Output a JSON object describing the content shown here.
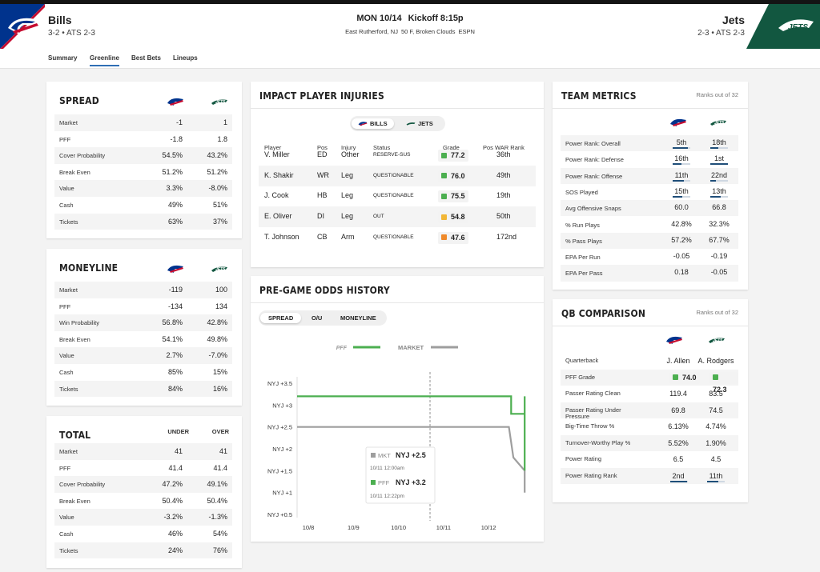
{
  "header": {
    "home_team": "Bills",
    "home_record": "3-2 • ATS 2-3",
    "away_team": "Jets",
    "away_record": "2-3 • ATS 2-3",
    "game_day": "MON 10/14",
    "kickoff": "Kickoff 8:15p",
    "location": "East Rutherford, NJ",
    "weather": "50 F, Broken Clouds",
    "network": "ESPN",
    "colors": {
      "bills_blue": "#00338d",
      "bills_red": "#c60c30",
      "jets_green": "#125740"
    }
  },
  "tabs": [
    "Summary",
    "Greenline",
    "Best Bets",
    "Lineups"
  ],
  "active_tab": "Greenline",
  "spread": {
    "title": "SPREAD",
    "rows": [
      {
        "label": "Market",
        "bills": "-1",
        "jets": "1"
      },
      {
        "label": "PFF",
        "bills": "-1.8",
        "jets": "1.8"
      },
      {
        "label": "Cover Probability",
        "bills": "54.5%",
        "jets": "43.2%"
      },
      {
        "label": "Break Even",
        "bills": "51.2%",
        "jets": "51.2%"
      },
      {
        "label": "Value",
        "bills": "3.3%",
        "jets": "-8.0%"
      },
      {
        "label": "Cash",
        "bills": "49%",
        "jets": "51%"
      },
      {
        "label": "Tickets",
        "bills": "63%",
        "jets": "37%"
      }
    ]
  },
  "moneyline": {
    "title": "MONEYLINE",
    "rows": [
      {
        "label": "Market",
        "bills": "-119",
        "jets": "100"
      },
      {
        "label": "PFF",
        "bills": "-134",
        "jets": "134"
      },
      {
        "label": "Win Probability",
        "bills": "56.8%",
        "jets": "42.8%"
      },
      {
        "label": "Break Even",
        "bills": "54.1%",
        "jets": "49.8%"
      },
      {
        "label": "Value",
        "bills": "2.7%",
        "jets": "-7.0%"
      },
      {
        "label": "Cash",
        "bills": "85%",
        "jets": "15%"
      },
      {
        "label": "Tickets",
        "bills": "84%",
        "jets": "16%"
      }
    ]
  },
  "total": {
    "title": "TOTAL",
    "col_a": "UNDER",
    "col_b": "OVER",
    "rows": [
      {
        "label": "Market",
        "a": "41",
        "b": "41"
      },
      {
        "label": "PFF",
        "a": "41.4",
        "b": "41.4"
      },
      {
        "label": "Cover Probability",
        "a": "47.2%",
        "b": "49.1%"
      },
      {
        "label": "Break Even",
        "a": "50.4%",
        "b": "50.4%"
      },
      {
        "label": "Value",
        "a": "-3.2%",
        "b": "-1.3%"
      },
      {
        "label": "Cash",
        "a": "46%",
        "b": "54%"
      },
      {
        "label": "Tickets",
        "a": "24%",
        "b": "76%"
      }
    ]
  },
  "injuries": {
    "title": "IMPACT PLAYER INJURIES",
    "toggle": [
      "BILLS",
      "JETS"
    ],
    "active": "BILLS",
    "columns": [
      "Player",
      "Pos",
      "Injury",
      "Status",
      "Grade",
      "Pos WAR Rank"
    ],
    "rows": [
      {
        "player": "V. Miller",
        "pos": "ED",
        "injury": "Other",
        "status": "RESERVE-SUS",
        "grade": "77.2",
        "grade_color": "#4caf50",
        "rank": "36th"
      },
      {
        "player": "K. Shakir",
        "pos": "WR",
        "injury": "Leg",
        "status": "QUESTIONABLE",
        "grade": "76.0",
        "grade_color": "#4caf50",
        "rank": "49th"
      },
      {
        "player": "J. Cook",
        "pos": "HB",
        "injury": "Leg",
        "status": "QUESTIONABLE",
        "grade": "75.5",
        "grade_color": "#4caf50",
        "rank": "19th"
      },
      {
        "player": "E. Oliver",
        "pos": "DI",
        "injury": "Leg",
        "status": "OUT",
        "grade": "54.8",
        "grade_color": "#f2b636",
        "rank": "50th"
      },
      {
        "player": "T. Johnson",
        "pos": "CB",
        "injury": "Arm",
        "status": "QUESTIONABLE",
        "grade": "47.6",
        "grade_color": "#ef8a2a",
        "rank": "172nd"
      }
    ]
  },
  "odds_history": {
    "title": "PRE-GAME ODDS HISTORY",
    "toggle": [
      "SPREAD",
      "O/U",
      "MONEYLINE"
    ],
    "active": "SPREAD",
    "legend": {
      "pff": "PFF",
      "market": "MARKET"
    },
    "tooltip": {
      "mkt_label": "MKT",
      "mkt_value": "NYJ +2.5",
      "mkt_time": "10/11 12:00am",
      "pff_label": "PFF",
      "pff_value": "NYJ +3.2",
      "pff_time": "10/11 12:22pm"
    }
  },
  "chart_data": {
    "type": "line",
    "title": "PRE-GAME ODDS HISTORY",
    "xlabel": "",
    "ylabel": "",
    "x_ticks": [
      "10/8",
      "10/9",
      "10/10",
      "10/11",
      "10/12"
    ],
    "y_ticks": [
      "NYJ +0.5",
      "NYJ +1",
      "NYJ +1.5",
      "NYJ +2",
      "NYJ +2.5",
      "NYJ +3",
      "NYJ +3.5"
    ],
    "ylim": [
      0.5,
      3.5
    ],
    "xlim": [
      7.75,
      12.85
    ],
    "x_unit": "day of October",
    "hover_x": 10.7,
    "series": [
      {
        "name": "PFF",
        "color": "#4caf50",
        "points": [
          [
            7.75,
            3.2
          ],
          [
            12.5,
            3.2
          ],
          [
            12.5,
            2.8
          ],
          [
            12.8,
            2.8
          ],
          [
            12.8,
            1.5
          ],
          [
            12.8,
            3.2
          ]
        ]
      },
      {
        "name": "MARKET",
        "color": "#9e9e9e",
        "points": [
          [
            7.75,
            2.5
          ],
          [
            12.45,
            2.5
          ],
          [
            12.55,
            1.8
          ],
          [
            12.8,
            1.5
          ],
          [
            12.8,
            1.0
          ]
        ]
      }
    ],
    "grid": false,
    "legend_position": "top-center"
  },
  "team_metrics": {
    "title": "TEAM METRICS",
    "ranks_note": "Ranks out of 32",
    "rows": [
      {
        "label": "Power Rank: Overall",
        "bills": "5th",
        "jets": "18th",
        "ranked": true,
        "bills_frac": 0.85,
        "jets_frac": 0.45
      },
      {
        "label": "Power Rank: Defense",
        "bills": "16th",
        "jets": "1st",
        "ranked": true,
        "bills_frac": 0.5,
        "jets_frac": 1.0
      },
      {
        "label": "Power Rank: Offense",
        "bills": "11th",
        "jets": "22nd",
        "ranked": true,
        "bills_frac": 0.65,
        "jets_frac": 0.3
      },
      {
        "label": "SOS Played",
        "bills": "15th",
        "jets": "13th",
        "ranked": true,
        "bills_frac": 0.55,
        "jets_frac": 0.6
      },
      {
        "label": "Avg Offensive Snaps",
        "bills": "60.0",
        "jets": "66.8",
        "ranked": false
      },
      {
        "label": "% Run Plays",
        "bills": "42.8%",
        "jets": "32.3%",
        "ranked": false
      },
      {
        "label": "% Pass Plays",
        "bills": "57.2%",
        "jets": "67.7%",
        "ranked": false
      },
      {
        "label": "EPA Per Run",
        "bills": "-0.05",
        "jets": "-0.19",
        "ranked": false
      },
      {
        "label": "EPA Per Pass",
        "bills": "0.18",
        "jets": "-0.05",
        "ranked": false
      }
    ]
  },
  "qb_comparison": {
    "title": "QB COMPARISON",
    "ranks_note": "Ranks out of 32",
    "rows": [
      {
        "label": "Quarterback",
        "bills": "J. Allen",
        "jets": "A. Rodgers"
      },
      {
        "label": "PFF Grade",
        "bills": "74.0",
        "jets": "72.3",
        "grade": true
      },
      {
        "label": "Passer Rating Clean",
        "bills": "119.4",
        "jets": "83.5"
      },
      {
        "label": "Passer Rating Under Pressure",
        "bills": "69.8",
        "jets": "74.5"
      },
      {
        "label": "Big-Time Throw %",
        "bills": "6.13%",
        "jets": "4.74%"
      },
      {
        "label": "Turnover-Worthy Play %",
        "bills": "5.52%",
        "jets": "1.90%"
      },
      {
        "label": "Power Rating",
        "bills": "6.5",
        "jets": "4.5"
      },
      {
        "label": "Power Rating Rank",
        "bills": "2nd",
        "jets": "11th",
        "ranked": true,
        "bills_frac": 0.95,
        "jets_frac": 0.65
      }
    ]
  }
}
